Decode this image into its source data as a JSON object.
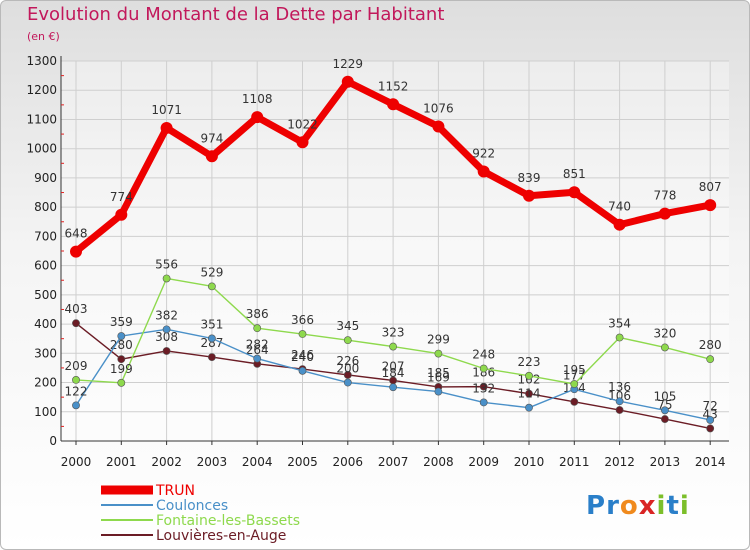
{
  "chart_data": {
    "type": "line",
    "title": "Evolution du Montant de la Dette par Habitant",
    "subtitle": "(en €)",
    "x": [
      "2000",
      "2001",
      "2002",
      "2003",
      "2004",
      "2005",
      "2006",
      "2007",
      "2008",
      "2009",
      "2010",
      "2011",
      "2012",
      "2013",
      "2014"
    ],
    "ylim": [
      0,
      1300
    ],
    "yticks": [
      0,
      100,
      200,
      300,
      400,
      500,
      600,
      700,
      800,
      900,
      1000,
      1100,
      1200,
      1300
    ],
    "grid": true,
    "legend_position": "bottom-left",
    "series": [
      {
        "name": "TRUN",
        "color": "#ee0000",
        "values": [
          648,
          774,
          1071,
          974,
          1108,
          1022,
          1229,
          1152,
          1076,
          922,
          839,
          851,
          740,
          778,
          807
        ]
      },
      {
        "name": "Coulonces",
        "color": "#4a90c8",
        "values": [
          122,
          359,
          382,
          351,
          282,
          240,
          200,
          184,
          169,
          132,
          114,
          177,
          136,
          105,
          72
        ]
      },
      {
        "name": "Fontaine-les-Bassets",
        "color": "#8ed94d",
        "values": [
          209,
          199,
          556,
          529,
          386,
          366,
          345,
          323,
          299,
          248,
          223,
          195,
          354,
          320,
          280
        ]
      },
      {
        "name": "Louvières-en-Auge",
        "color": "#6b1c25",
        "values": [
          403,
          280,
          308,
          287,
          264,
          246,
          226,
          207,
          185,
          186,
          162,
          134,
          106,
          75,
          43
        ]
      }
    ]
  },
  "logo": {
    "text": "Proxiti",
    "letters": [
      "P",
      "r",
      "o",
      "x",
      "i",
      "t",
      "i"
    ],
    "colors": [
      "#2a7fc9",
      "#2a7fc9",
      "#f08a1d",
      "#d92424",
      "#7cbf2a",
      "#2a7fc9",
      "#7cbf2a"
    ]
  }
}
